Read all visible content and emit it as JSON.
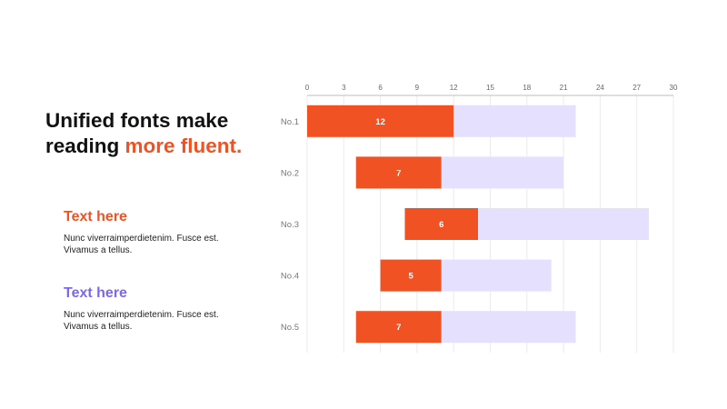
{
  "headline": {
    "line1": "Unified fonts make",
    "line2_plain": "reading ",
    "line2_accent": "more fluent."
  },
  "blocks": [
    {
      "title": "Text here",
      "title_color": "#f05223",
      "body": "Nunc viverraimperdietenim. Fusce est. Vivamus a tellus."
    },
    {
      "title": "Text here",
      "title_color": "#7b68ee",
      "body": "Nunc viverraimperdietenim. Fusce est. Vivamus a tellus."
    }
  ],
  "colors": {
    "accent": "#f05223",
    "light_bar": "#e4e0fe"
  },
  "chart_data": {
    "type": "bar",
    "orientation": "horizontal",
    "stacked": true,
    "categories": [
      "No.1",
      "No.2",
      "No.3",
      "No.4",
      "No.5"
    ],
    "xlim": [
      0,
      30
    ],
    "xticks": [
      0,
      3,
      6,
      9,
      12,
      15,
      18,
      21,
      24,
      27,
      30
    ],
    "x_axis_position": "top",
    "grid": true,
    "series": [
      {
        "role": "offset",
        "values": [
          0,
          4,
          8,
          6,
          4
        ],
        "color": "transparent"
      },
      {
        "role": "highlight",
        "values": [
          12,
          7,
          6,
          5,
          7
        ],
        "color": "#f05223"
      },
      {
        "role": "remainder",
        "values": [
          10,
          10,
          14,
          9,
          11
        ],
        "color": "#e4e0fe"
      }
    ],
    "data_labels": [
      "12",
      "7",
      "6",
      "5",
      "7"
    ]
  }
}
